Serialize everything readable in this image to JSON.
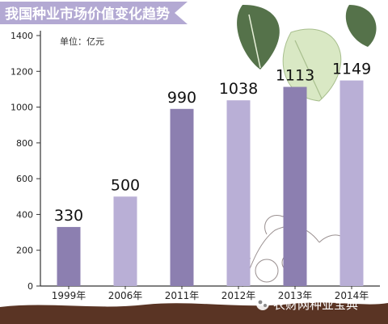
{
  "chart_data": {
    "type": "bar",
    "title": "我国种业市场价值变化趋势",
    "unit_label": "单位：亿元",
    "categories": [
      "1999年",
      "2006年",
      "2011年",
      "2012年",
      "2013年",
      "2014年"
    ],
    "values": [
      330,
      500,
      990,
      1038,
      1113,
      1149
    ],
    "value_labels": [
      "330",
      "500",
      "990",
      "1038",
      "1113",
      "1149"
    ],
    "ylim": [
      0,
      1400
    ],
    "yticks": [
      0,
      200,
      400,
      600,
      800,
      1000,
      1200,
      1400
    ],
    "grid": false,
    "bar_colors": [
      "#8c7fb0",
      "#b9afd6",
      "#8c7fb0",
      "#b9afd6",
      "#8c7fb0",
      "#b9afd6"
    ]
  },
  "watermark": "农财网种业宝典",
  "colors": {
    "banner": "#b3a9d3",
    "soil": "#5a3424",
    "leaf_dark": "#4f6b3f",
    "leaf_light": "#cfe0b4",
    "axis": "#333333"
  }
}
